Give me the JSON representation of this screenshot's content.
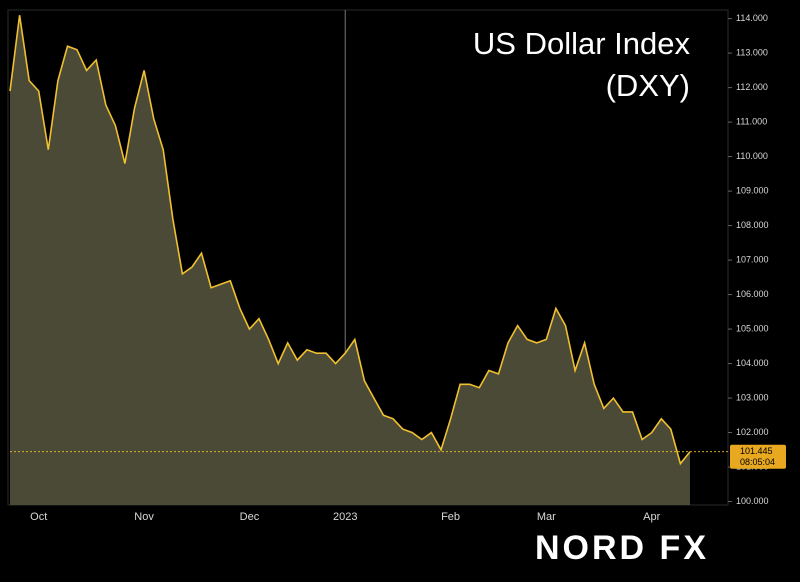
{
  "chart_data": {
    "type": "area",
    "title": "US Dollar Index",
    "subtitle": "(DXY)",
    "brand": "NORD FX",
    "countdown": "08:05:04",
    "color": "#f0c030",
    "fill": "#4b4a36",
    "categories": [
      null,
      null,
      null,
      "Oct",
      null,
      null,
      null,
      null,
      null,
      null,
      null,
      null,
      null,
      null,
      "Nov",
      null,
      null,
      null,
      null,
      null,
      null,
      null,
      null,
      null,
      null,
      "Dec",
      null,
      null,
      null,
      null,
      null,
      null,
      null,
      null,
      null,
      "2023",
      null,
      null,
      null,
      null,
      null,
      null,
      null,
      null,
      null,
      null,
      "Feb",
      null,
      null,
      null,
      null,
      null,
      null,
      null,
      null,
      null,
      "Mar",
      null,
      null,
      null,
      null,
      null,
      null,
      null,
      null,
      null,
      null,
      "Apr",
      null,
      null,
      null,
      null
    ],
    "values": [
      111.9,
      114.1,
      112.2,
      111.9,
      110.2,
      112.2,
      113.2,
      113.1,
      112.5,
      112.8,
      111.5,
      110.9,
      109.8,
      111.4,
      112.5,
      111.1,
      110.2,
      108.2,
      106.6,
      106.8,
      107.2,
      106.2,
      106.3,
      106.4,
      105.6,
      105.0,
      105.3,
      104.7,
      104.0,
      104.6,
      104.1,
      104.4,
      104.3,
      104.3,
      104.0,
      104.3,
      104.7,
      103.5,
      103.0,
      102.5,
      102.4,
      102.1,
      102.0,
      101.8,
      102.0,
      101.5,
      102.4,
      103.4,
      103.4,
      103.3,
      103.8,
      103.7,
      104.6,
      105.1,
      104.7,
      104.6,
      104.7,
      105.6,
      105.1,
      103.8,
      104.6,
      103.4,
      102.7,
      103.0,
      102.6,
      102.6,
      101.8,
      102.0,
      102.4,
      102.1,
      101.1,
      101.445
    ],
    "ylim": [
      99.9,
      114.25
    ],
    "yticks": [
      {
        "value": 100,
        "label": "100.000"
      },
      {
        "value": 101,
        "label": "101.000"
      },
      {
        "value": 102,
        "label": "102.000"
      },
      {
        "value": 103,
        "label": "103.000"
      },
      {
        "value": 104,
        "label": "104.000"
      },
      {
        "value": 105,
        "label": "105.000"
      },
      {
        "value": 106,
        "label": "106.000"
      },
      {
        "value": 107,
        "label": "107.000"
      },
      {
        "value": 108,
        "label": "108.000"
      },
      {
        "value": 109,
        "label": "109.000"
      },
      {
        "value": 110,
        "label": "110.000"
      },
      {
        "value": 111,
        "label": "111.000"
      },
      {
        "value": 112,
        "label": "112.000"
      },
      {
        "value": 113,
        "label": "113.000"
      },
      {
        "value": 114,
        "label": "114.000"
      }
    ]
  }
}
